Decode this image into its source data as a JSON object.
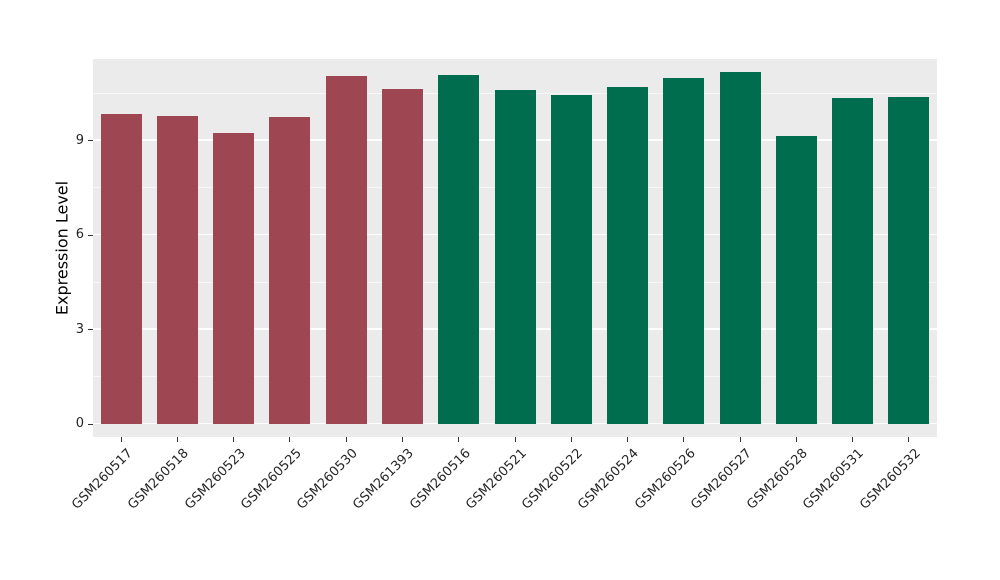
{
  "chart_data": {
    "type": "bar",
    "title": "",
    "xlabel": "",
    "ylabel": "Expression Level",
    "ylim": [
      0,
      11.6
    ],
    "yticks": [
      0,
      3,
      6,
      9
    ],
    "grid": "on",
    "legend": "none",
    "panel_background": "#EBEBEB",
    "categories": [
      "GSM260517",
      "GSM260518",
      "GSM260523",
      "GSM260525",
      "GSM260530",
      "GSM261393",
      "GSM260516",
      "GSM260521",
      "GSM260522",
      "GSM260524",
      "GSM260526",
      "GSM260527",
      "GSM260528",
      "GSM260531",
      "GSM260532"
    ],
    "values": [
      9.85,
      9.8,
      9.25,
      9.75,
      11.05,
      10.65,
      11.1,
      10.6,
      10.45,
      10.7,
      11.0,
      11.2,
      9.15,
      10.35,
      10.4
    ],
    "groups": [
      "group_a",
      "group_a",
      "group_a",
      "group_a",
      "group_a",
      "group_a",
      "group_b",
      "group_b",
      "group_b",
      "group_b",
      "group_b",
      "group_b",
      "group_b",
      "group_b",
      "group_b"
    ],
    "group_colors": {
      "group_a": "#9E4651",
      "group_b": "#006E4E"
    }
  }
}
